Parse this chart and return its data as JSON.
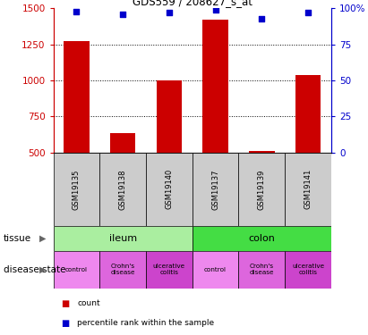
{
  "title": "GDS559 / 208627_s_at",
  "samples": [
    "GSM19135",
    "GSM19138",
    "GSM19140",
    "GSM19137",
    "GSM19139",
    "GSM19141"
  ],
  "counts": [
    1270,
    635,
    1000,
    1420,
    510,
    1040
  ],
  "percentile_ranks": [
    98,
    96,
    97,
    99,
    93,
    97
  ],
  "ylim_left": [
    500,
    1500
  ],
  "ylim_right": [
    0,
    100
  ],
  "yticks_left": [
    500,
    750,
    1000,
    1250,
    1500
  ],
  "yticks_right": [
    0,
    25,
    50,
    75,
    100
  ],
  "bar_color": "#cc0000",
  "dot_color": "#0000cc",
  "tissue_ileum_color": "#aaeea0",
  "tissue_colon_color": "#44dd44",
  "disease_control_color": "#ee88ee",
  "disease_crohn_color": "#dd66dd",
  "disease_uc_color": "#cc44cc",
  "tissue_label": "tissue",
  "disease_label": "disease state",
  "legend_count_label": "count",
  "legend_pct_label": "percentile rank within the sample",
  "sample_box_color": "#cccccc",
  "left_axis_color": "#cc0000",
  "right_axis_color": "#0000cc",
  "background_color": "#ffffff",
  "fig_width": 4.11,
  "fig_height": 3.75
}
